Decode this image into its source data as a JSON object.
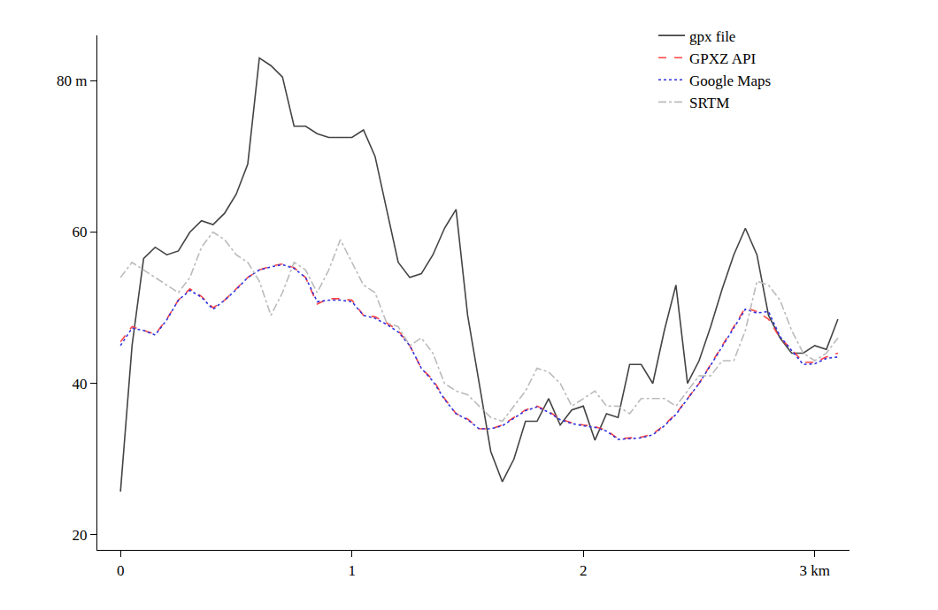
{
  "chart_data": {
    "type": "line",
    "x": [
      0,
      0.05,
      0.1,
      0.15,
      0.2,
      0.25,
      0.3,
      0.35,
      0.4,
      0.45,
      0.5,
      0.55,
      0.6,
      0.65,
      0.7,
      0.75,
      0.8,
      0.85,
      0.9,
      0.95,
      1.0,
      1.05,
      1.1,
      1.15,
      1.2,
      1.25,
      1.3,
      1.35,
      1.4,
      1.45,
      1.5,
      1.55,
      1.6,
      1.65,
      1.7,
      1.75,
      1.8,
      1.85,
      1.9,
      1.95,
      2.0,
      2.05,
      2.1,
      2.15,
      2.2,
      2.25,
      2.3,
      2.35,
      2.4,
      2.45,
      2.5,
      2.55,
      2.6,
      2.65,
      2.7,
      2.75,
      2.8,
      2.85,
      2.9,
      2.95,
      3.0,
      3.05,
      3.1
    ],
    "series": [
      {
        "name": "gpx file",
        "color": "#444444",
        "line_style": "solid",
        "values": [
          25.7,
          45,
          56.5,
          58,
          57,
          57.5,
          60,
          61.5,
          61,
          62.5,
          65,
          69,
          83,
          82,
          80.5,
          74,
          74,
          73,
          72.5,
          72.5,
          72.5,
          73.5,
          70,
          63,
          56,
          54,
          54.5,
          57,
          60.5,
          63,
          49,
          40,
          31,
          27,
          30,
          35,
          35,
          38,
          34.5,
          36.5,
          37,
          32.5,
          36,
          35.5,
          42.5,
          42.5,
          40,
          47,
          53,
          40,
          43,
          47.5,
          52.5,
          57,
          60.5,
          57,
          49,
          46,
          44,
          44,
          45,
          44.5,
          48.5
        ]
      },
      {
        "name": "GPXZ API",
        "color": "#ff4444",
        "line_style": "dash",
        "values": [
          45.5,
          47.5,
          47,
          46.5,
          48.5,
          51,
          52.5,
          51.5,
          50,
          51,
          52.5,
          54,
          55,
          55.5,
          55.8,
          55.3,
          54,
          50.5,
          51.2,
          51.2,
          51,
          49,
          48.8,
          48,
          47,
          45,
          42,
          40.5,
          38,
          36,
          35.3,
          34,
          34,
          34.5,
          35.5,
          36.5,
          37,
          36.3,
          35.3,
          34.8,
          34.5,
          34.3,
          33.8,
          32.7,
          32.8,
          32.9,
          33.3,
          34.5,
          36,
          38,
          40,
          42.5,
          45,
          47.5,
          50,
          49.5,
          48.5,
          46,
          44.5,
          42.8,
          42.8,
          43.5,
          44
        ]
      },
      {
        "name": "Google Maps",
        "color": "#3333dd",
        "line_style": "dot",
        "values": [
          45,
          47.3,
          47,
          46.4,
          48.4,
          51,
          52.3,
          51.4,
          49.8,
          51,
          52.4,
          54,
          55,
          55.4,
          55.7,
          55.2,
          54,
          50.8,
          51,
          51,
          50.8,
          49,
          48.6,
          47.8,
          46.8,
          45,
          42,
          40.3,
          37.9,
          36,
          35.2,
          34,
          34,
          34.4,
          35.4,
          36.4,
          36.9,
          36.2,
          35.2,
          34.7,
          34.4,
          34.2,
          33.7,
          32.6,
          32.7,
          32.8,
          33.2,
          34.4,
          35.9,
          37.9,
          40,
          42.4,
          44.9,
          47.4,
          49.8,
          49.3,
          49.5,
          46.2,
          44.3,
          42.5,
          42.6,
          43.3,
          43.5
        ]
      },
      {
        "name": "SRTM",
        "color": "#bbbbbb",
        "line_style": "dashdot",
        "values": [
          54,
          56,
          55,
          54,
          53,
          52,
          54,
          58,
          60,
          59,
          57,
          56,
          53.5,
          49,
          52,
          56,
          55,
          52,
          55,
          59,
          56,
          53,
          52,
          48,
          47.5,
          45,
          46,
          44,
          40,
          39,
          38.5,
          37,
          35.5,
          35,
          37,
          39,
          42,
          41.5,
          40,
          37,
          38,
          39,
          37,
          37,
          36,
          38,
          38,
          38,
          37,
          39,
          41,
          41,
          43,
          43,
          47,
          53.5,
          53,
          51,
          47,
          44,
          43,
          44,
          46
        ]
      }
    ],
    "xlim": [
      -0.1,
      3.15
    ],
    "ylim": [
      18,
      86
    ],
    "xticks": [
      0,
      1,
      2,
      {
        "value": 3,
        "label": "3 km"
      }
    ],
    "yticks": [
      20,
      40,
      60,
      {
        "value": 80,
        "label": "80 m"
      }
    ],
    "grid": false,
    "legend": "upper right"
  }
}
